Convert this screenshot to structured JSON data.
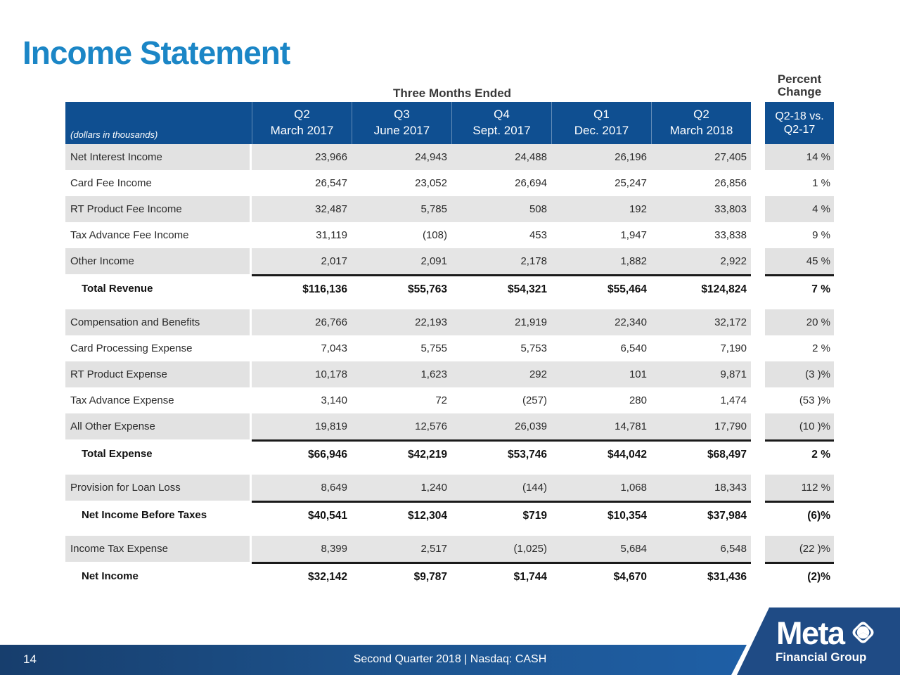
{
  "slide": {
    "title": "Income Statement",
    "page_number": "14",
    "footer_text": "Second Quarter 2018 | Nasdaq: CASH",
    "logo": {
      "brand": "Meta",
      "subtitle": "Financial Group",
      "icon": "meta-diamond-icon"
    },
    "colors": {
      "title_blue": "#1b86c6",
      "table_header_blue": "#0f4f91",
      "row_shade_gray": "#e2e2e2",
      "total_rule_black": "#1a1a1a",
      "footer_blue_left": "#173e6d",
      "footer_blue_right": "#1e5fa6",
      "logo_navy": "#1f4b85"
    }
  },
  "table": {
    "group_header": "Three Months Ended",
    "percent_header_line1": "Percent",
    "percent_header_line2": "Change",
    "units_note": "(dollars in thousands)",
    "currency_symbol": "$",
    "columns": [
      {
        "quarter": "Q2",
        "period": "March 2017"
      },
      {
        "quarter": "Q3",
        "period": "June 2017"
      },
      {
        "quarter": "Q4",
        "period": "Sept. 2017"
      },
      {
        "quarter": "Q1",
        "period": "Dec. 2017"
      },
      {
        "quarter": "Q2",
        "period": "March 2018"
      }
    ],
    "percent_column": {
      "line1": "Q2-18 vs.",
      "line2": "Q2-17"
    },
    "rows": [
      {
        "label": "Net Interest Income",
        "values": [
          "23,966",
          "24,943",
          "24,488",
          "26,196",
          "27,405"
        ],
        "percent": "14 %",
        "shaded": true,
        "total": false
      },
      {
        "label": "Card Fee Income",
        "values": [
          "26,547",
          "23,052",
          "26,694",
          "25,247",
          "26,856"
        ],
        "percent": "1 %",
        "shaded": false,
        "total": false
      },
      {
        "label": "RT Product Fee Income",
        "values": [
          "32,487",
          "5,785",
          "508",
          "192",
          "33,803"
        ],
        "percent": "4 %",
        "shaded": true,
        "total": false
      },
      {
        "label": "Tax Advance Fee Income",
        "values": [
          "31,119",
          "(108)",
          "453",
          "1,947",
          "33,838"
        ],
        "percent": "9 %",
        "shaded": false,
        "total": false
      },
      {
        "label": "Other Income",
        "values": [
          "2,017",
          "2,091",
          "2,178",
          "1,882",
          "2,922"
        ],
        "percent": "45 %",
        "shaded": true,
        "total": false
      },
      {
        "label": "Total Revenue",
        "values": [
          "116,136",
          "55,763",
          "54,321",
          "55,464",
          "124,824"
        ],
        "percent": "7 %",
        "shaded": false,
        "total": true
      },
      {
        "label": "Compensation and Benefits",
        "values": [
          "26,766",
          "22,193",
          "21,919",
          "22,340",
          "32,172"
        ],
        "percent": "20 %",
        "shaded": true,
        "total": false
      },
      {
        "label": "Card Processing Expense",
        "values": [
          "7,043",
          "5,755",
          "5,753",
          "6,540",
          "7,190"
        ],
        "percent": "2 %",
        "shaded": false,
        "total": false
      },
      {
        "label": "RT Product Expense",
        "values": [
          "10,178",
          "1,623",
          "292",
          "101",
          "9,871"
        ],
        "percent": "(3 )%",
        "shaded": true,
        "total": false
      },
      {
        "label": "Tax Advance Expense",
        "values": [
          "3,140",
          "72",
          "(257)",
          "280",
          "1,474"
        ],
        "percent": "(53 )%",
        "shaded": false,
        "total": false
      },
      {
        "label": "All Other Expense",
        "values": [
          "19,819",
          "12,576",
          "26,039",
          "14,781",
          "17,790"
        ],
        "percent": "(10 )%",
        "shaded": true,
        "total": false
      },
      {
        "label": "Total Expense",
        "values": [
          "66,946",
          "42,219",
          "53,746",
          "44,042",
          "68,497"
        ],
        "percent": "2 %",
        "shaded": false,
        "total": true
      },
      {
        "label": "Provision for Loan Loss",
        "values": [
          "8,649",
          "1,240",
          "(144)",
          "1,068",
          "18,343"
        ],
        "percent": "112 %",
        "shaded": true,
        "total": false
      },
      {
        "label": "Net Income Before Taxes",
        "values": [
          "40,541",
          "12,304",
          "719",
          "10,354",
          "37,984"
        ],
        "percent": "(6)%",
        "shaded": false,
        "total": true
      },
      {
        "label": "Income Tax Expense",
        "values": [
          "8,399",
          "2,517",
          "(1,025)",
          "5,684",
          "6,548"
        ],
        "percent": "(22 )%",
        "shaded": true,
        "total": false
      },
      {
        "label": "Net Income",
        "values": [
          "32,142",
          "9,787",
          "1,744",
          "4,670",
          "31,436"
        ],
        "percent": "(2)%",
        "shaded": false,
        "total": true
      }
    ]
  }
}
